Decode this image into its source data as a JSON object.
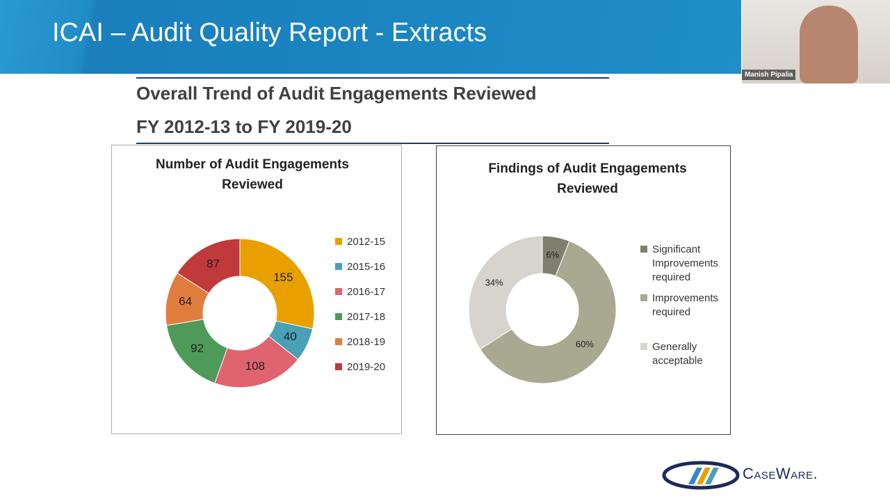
{
  "slide": {
    "title": "ICAI – Audit Quality Report - Extracts",
    "heading": [
      "Overall Trend of Audit Engagements Reviewed",
      "FY 2012-13 to FY 2019-20"
    ]
  },
  "presenter": {
    "name": "Manish Pipalia"
  },
  "logo": {
    "text": "CaseWare."
  },
  "chart_data": [
    {
      "type": "donut",
      "title": "Number of Audit Engagements Reviewed",
      "categories": [
        "2012-15",
        "2015-16",
        "2016-17",
        "2017-18",
        "2018-19",
        "2019-20"
      ],
      "values": [
        155,
        40,
        108,
        92,
        64,
        87
      ],
      "colors": [
        "#e8a000",
        "#4aa0b5",
        "#e06470",
        "#4e9a58",
        "#e07d3e",
        "#c0393b"
      ]
    },
    {
      "type": "donut",
      "title": "Findings of Audit Engagements Reviewed",
      "categories": [
        "Significant Improvements required",
        "Improvements required",
        "Generally acceptable"
      ],
      "values": [
        6,
        60,
        34
      ],
      "value_labels": [
        "6%",
        "60%",
        "34%"
      ],
      "colors": [
        "#7f7f6f",
        "#a9a890",
        "#d6d4cd"
      ]
    }
  ]
}
